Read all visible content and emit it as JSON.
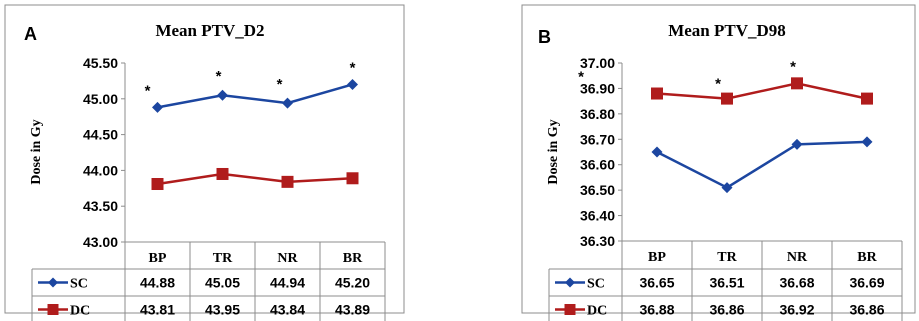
{
  "chart_data": [
    {
      "type": "line",
      "panel": "A",
      "title": "Mean PTV_D2",
      "ylabel": "Dose in Gy",
      "xlabel": "",
      "categories": [
        "BP",
        "TR",
        "NR",
        "BR"
      ],
      "ylim": [
        43.0,
        45.5
      ],
      "yticks": [
        "43.00",
        "43.50",
        "44.00",
        "44.50",
        "45.00",
        "45.50"
      ],
      "grid": false,
      "legend_placement": "data-table",
      "annotation": "*",
      "series": [
        {
          "name": "SC",
          "values": [
            44.88,
            45.05,
            44.94,
            45.2
          ],
          "labels": [
            "44.88",
            "45.05",
            "44.94",
            "45.20"
          ],
          "color": "#1c46a0",
          "marker": "diamond"
        },
        {
          "name": "DC",
          "values": [
            43.81,
            43.95,
            43.84,
            43.89
          ],
          "labels": [
            "43.81",
            "43.95",
            "43.84",
            "43.89"
          ],
          "color": "#b01c1c",
          "marker": "square"
        }
      ]
    },
    {
      "type": "line",
      "panel": "B",
      "title": "Mean PTV_D98",
      "ylabel": "Dose in Gy",
      "xlabel": "",
      "categories": [
        "BP",
        "TR",
        "NR",
        "BR"
      ],
      "ylim": [
        36.3,
        37.0
      ],
      "yticks": [
        "36.30",
        "36.40",
        "36.50",
        "36.60",
        "36.70",
        "36.80",
        "36.90",
        "37.00"
      ],
      "grid": false,
      "legend_placement": "data-table",
      "annotation": "*",
      "series": [
        {
          "name": "SC",
          "values": [
            36.65,
            36.51,
            36.68,
            36.69
          ],
          "labels": [
            "36.65",
            "36.51",
            "36.68",
            "36.69"
          ],
          "color": "#1c46a0",
          "marker": "diamond"
        },
        {
          "name": "DC",
          "values": [
            36.88,
            36.86,
            36.92,
            36.86
          ],
          "labels": [
            "36.88",
            "36.86",
            "36.92",
            "36.86"
          ],
          "color": "#b01c1c",
          "marker": "square"
        }
      ]
    }
  ]
}
